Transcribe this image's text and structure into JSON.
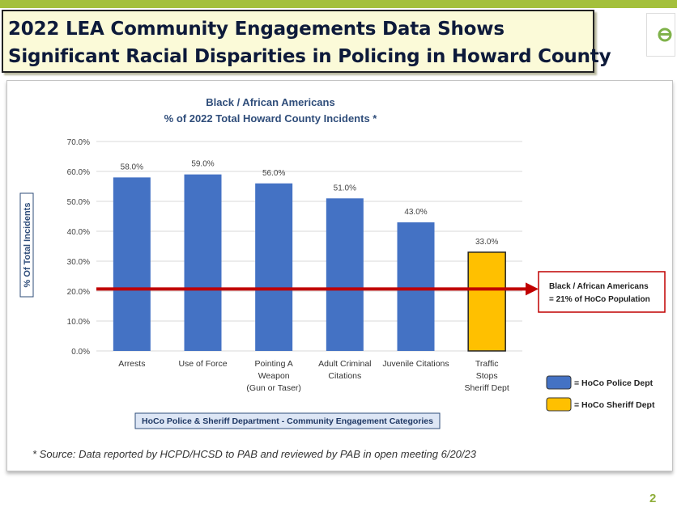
{
  "slide": {
    "title_line1": "2022 LEA Community Engagements Data Shows",
    "title_line2": "Significant Racial Disparities in Policing in Howard County",
    "source_note": "* Source: Data reported by HCPD/HCSD to PAB and reviewed by PAB in open meeting 6/20/23",
    "page_number": "2"
  },
  "chart_data": {
    "type": "bar",
    "title": "Black / African Americans",
    "subtitle": "% of 2022 Total Howard County Incidents *",
    "ylabel": "% Of Total Incidents",
    "xlabel": "HoCo Police & Sheriff Department - Community Engagement Categories",
    "ylim": [
      0,
      70
    ],
    "yticks": [
      "0.0%",
      "10.0%",
      "20.0%",
      "30.0%",
      "40.0%",
      "50.0%",
      "60.0%",
      "70.0%"
    ],
    "grid": true,
    "categories": [
      [
        "Arrests"
      ],
      [
        "Use of Force"
      ],
      [
        "Pointing A",
        "Weapon",
        "(Gun or Taser)"
      ],
      [
        "Adult Criminal",
        "Citations"
      ],
      [
        "Juvenile Citations"
      ],
      [
        "Traffic",
        "Stops",
        "Sheriff Dept"
      ]
    ],
    "values": [
      58.0,
      59.0,
      56.0,
      51.0,
      43.0,
      33.0
    ],
    "data_labels": [
      "58.0%",
      "59.0%",
      "56.0%",
      "51.0%",
      "43.0%",
      "33.0%"
    ],
    "departments": [
      "police",
      "police",
      "police",
      "police",
      "police",
      "sheriff"
    ],
    "colors": {
      "police": "#4472c4",
      "sheriff": "#ffc000",
      "reference": "#c00000"
    },
    "reference_line": {
      "value": 20.7,
      "label": [
        "Black / African Americans",
        "= 21% of HoCo Population"
      ]
    },
    "legend": {
      "placement": "bottom-right",
      "entries": [
        {
          "key": "police",
          "label": "= HoCo Police Dept"
        },
        {
          "key": "sheriff",
          "label": "= HoCo Sheriff Dept"
        }
      ]
    }
  }
}
